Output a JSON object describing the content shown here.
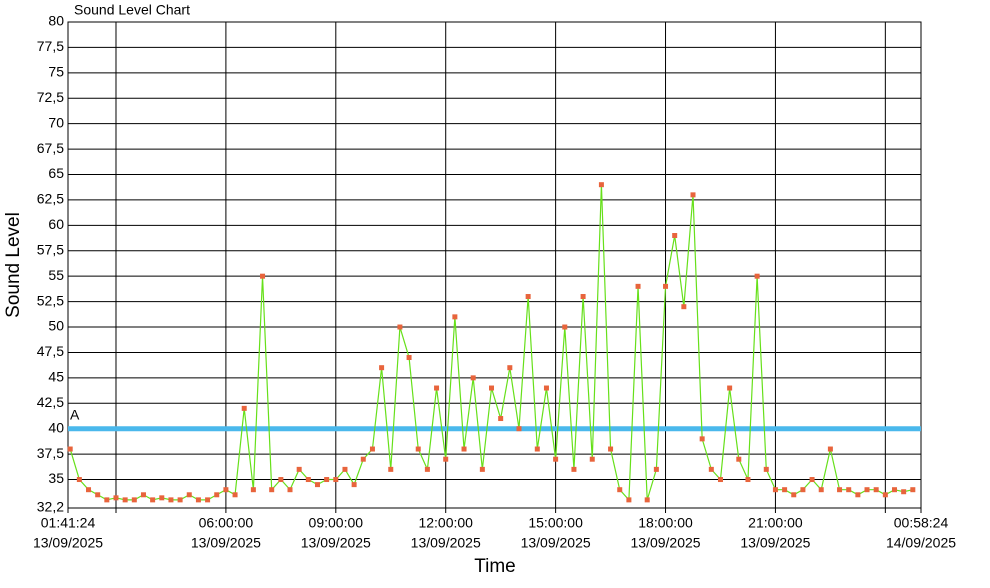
{
  "chart_data": {
    "type": "line",
    "title": "Sound Level Chart",
    "x_label": "Time",
    "y_label": "Sound Level",
    "x": [
      "2025-09-13T01:45",
      "2025-09-13T02:00",
      "2025-09-13T02:15",
      "2025-09-13T02:30",
      "2025-09-13T02:45",
      "2025-09-13T03:00",
      "2025-09-13T03:15",
      "2025-09-13T03:30",
      "2025-09-13T03:45",
      "2025-09-13T04:00",
      "2025-09-13T04:15",
      "2025-09-13T04:30",
      "2025-09-13T04:45",
      "2025-09-13T05:00",
      "2025-09-13T05:15",
      "2025-09-13T05:30",
      "2025-09-13T05:45",
      "2025-09-13T06:00",
      "2025-09-13T06:15",
      "2025-09-13T06:30",
      "2025-09-13T06:45",
      "2025-09-13T07:00",
      "2025-09-13T07:15",
      "2025-09-13T07:30",
      "2025-09-13T07:45",
      "2025-09-13T08:00",
      "2025-09-13T08:15",
      "2025-09-13T08:30",
      "2025-09-13T08:45",
      "2025-09-13T09:00",
      "2025-09-13T09:15",
      "2025-09-13T09:30",
      "2025-09-13T09:45",
      "2025-09-13T10:00",
      "2025-09-13T10:15",
      "2025-09-13T10:30",
      "2025-09-13T10:45",
      "2025-09-13T11:00",
      "2025-09-13T11:15",
      "2025-09-13T11:30",
      "2025-09-13T11:45",
      "2025-09-13T12:00",
      "2025-09-13T12:15",
      "2025-09-13T12:30",
      "2025-09-13T12:45",
      "2025-09-13T13:00",
      "2025-09-13T13:15",
      "2025-09-13T13:30",
      "2025-09-13T13:45",
      "2025-09-13T14:00",
      "2025-09-13T14:15",
      "2025-09-13T14:30",
      "2025-09-13T14:45",
      "2025-09-13T15:00",
      "2025-09-13T15:15",
      "2025-09-13T15:30",
      "2025-09-13T15:45",
      "2025-09-13T16:00",
      "2025-09-13T16:15",
      "2025-09-13T16:30",
      "2025-09-13T16:45",
      "2025-09-13T17:00",
      "2025-09-13T17:15",
      "2025-09-13T17:30",
      "2025-09-13T17:45",
      "2025-09-13T18:00",
      "2025-09-13T18:15",
      "2025-09-13T18:30",
      "2025-09-13T18:45",
      "2025-09-13T19:00",
      "2025-09-13T19:15",
      "2025-09-13T19:30",
      "2025-09-13T19:45",
      "2025-09-13T20:00",
      "2025-09-13T20:15",
      "2025-09-13T20:30",
      "2025-09-13T20:45",
      "2025-09-13T21:00",
      "2025-09-13T21:15",
      "2025-09-13T21:30",
      "2025-09-13T21:45",
      "2025-09-13T22:00",
      "2025-09-13T22:15",
      "2025-09-13T22:30",
      "2025-09-13T22:45",
      "2025-09-13T23:00",
      "2025-09-13T23:15",
      "2025-09-13T23:30",
      "2025-09-13T23:45",
      "2025-09-14T00:00",
      "2025-09-14T00:15",
      "2025-09-14T00:30",
      "2025-09-14T00:45"
    ],
    "series": [
      {
        "name": "Sound Level",
        "color": "#66e01a",
        "marker_color": "#e8643c",
        "values": [
          38,
          35,
          34,
          33.5,
          33,
          33.2,
          33,
          33,
          33.5,
          33,
          33.2,
          33,
          33,
          33.5,
          33,
          33,
          33.5,
          34,
          33.5,
          42,
          34,
          55,
          34,
          35,
          34,
          36,
          35,
          34.5,
          35,
          35,
          36,
          34.5,
          37,
          38,
          46,
          36,
          50,
          47,
          38,
          36,
          44,
          37,
          51,
          38,
          45,
          36,
          44,
          41,
          46,
          40,
          53,
          38,
          44,
          37,
          50,
          36,
          53,
          37,
          64,
          38,
          34,
          33,
          54,
          33,
          36,
          54,
          59,
          52,
          63,
          39,
          36,
          35,
          44,
          37,
          35,
          55,
          36,
          34,
          34,
          33.5,
          34,
          35,
          34,
          38,
          34,
          34,
          33.5,
          34,
          34,
          33.5,
          34,
          33.8,
          34
        ]
      }
    ],
    "threshold": {
      "value": 40,
      "label": "A",
      "color": "#4ab8ec"
    },
    "xlim": [
      "2025-09-13T01:41:24",
      "2025-09-14T00:58:24"
    ],
    "xticks": [
      {
        "value": "2025-09-13T01:41:24",
        "label": [
          "01:41:24",
          "13/09/2025"
        ]
      },
      {
        "value": "2025-09-13T03:00:00",
        "label": null
      },
      {
        "value": "2025-09-13T06:00:00",
        "label": [
          "06:00:00",
          "13/09/2025"
        ]
      },
      {
        "value": "2025-09-13T09:00:00",
        "label": [
          "09:00:00",
          "13/09/2025"
        ]
      },
      {
        "value": "2025-09-13T12:00:00",
        "label": [
          "12:00:00",
          "13/09/2025"
        ]
      },
      {
        "value": "2025-09-13T15:00:00",
        "label": [
          "15:00:00",
          "13/09/2025"
        ]
      },
      {
        "value": "2025-09-13T18:00:00",
        "label": [
          "18:00:00",
          "13/09/2025"
        ]
      },
      {
        "value": "2025-09-13T21:00:00",
        "label": [
          "21:00:00",
          "13/09/2025"
        ]
      },
      {
        "value": "2025-09-14T00:00:00",
        "label": null
      },
      {
        "value": "2025-09-14T00:58:24",
        "label": [
          "00:58:24",
          "14/09/2025"
        ]
      }
    ],
    "ylim": [
      32.2,
      80
    ],
    "yticks": [
      {
        "value": 32.2,
        "label": "32,2"
      },
      35,
      {
        "value": 37.5,
        "label": "37,5"
      },
      40,
      {
        "value": 42.5,
        "label": "42,5"
      },
      45,
      {
        "value": 47.5,
        "label": "47,5"
      },
      50,
      {
        "value": 52.5,
        "label": "52,5"
      },
      55,
      {
        "value": 57.5,
        "label": "57,5"
      },
      60,
      {
        "value": 62.5,
        "label": "62,5"
      },
      65,
      {
        "value": 67.5,
        "label": "67,5"
      },
      70,
      {
        "value": 72.5,
        "label": "72,5"
      },
      75,
      {
        "value": 77.5,
        "label": "77,5"
      },
      80
    ],
    "grid": true
  }
}
